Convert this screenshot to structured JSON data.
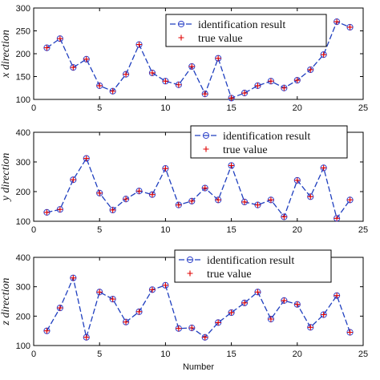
{
  "chart_data": [
    {
      "type": "line",
      "title": "",
      "xlabel": "",
      "ylabel": "x direction",
      "xlim": [
        0,
        25
      ],
      "ylim": [
        100,
        300
      ],
      "xticks": [
        0,
        5,
        10,
        15,
        20,
        25
      ],
      "yticks": [
        100,
        150,
        200,
        250,
        300
      ],
      "x": [
        1,
        2,
        3,
        4,
        5,
        6,
        7,
        8,
        9,
        10,
        11,
        12,
        13,
        14,
        15,
        16,
        17,
        18,
        19,
        20,
        21,
        22,
        23,
        24
      ],
      "series": [
        {
          "name": "identification result",
          "values": [
            213,
            233,
            170,
            188,
            130,
            118,
            155,
            220,
            158,
            140,
            132,
            172,
            112,
            190,
            103,
            114,
            130,
            140,
            125,
            142,
            165,
            198,
            270,
            258
          ]
        },
        {
          "name": "true value",
          "values": [
            213,
            233,
            170,
            188,
            130,
            118,
            155,
            220,
            158,
            140,
            132,
            172,
            112,
            190,
            103,
            114,
            130,
            140,
            125,
            142,
            165,
            198,
            270,
            258
          ]
        }
      ],
      "legend": "top-right"
    },
    {
      "type": "line",
      "title": "",
      "xlabel": "",
      "ylabel": "y direction",
      "xlim": [
        0,
        25
      ],
      "ylim": [
        100,
        400
      ],
      "xticks": [
        0,
        5,
        10,
        15,
        20,
        25
      ],
      "yticks": [
        100,
        200,
        300,
        400
      ],
      "x": [
        1,
        2,
        3,
        4,
        5,
        6,
        7,
        8,
        9,
        10,
        11,
        12,
        13,
        14,
        15,
        16,
        17,
        18,
        19,
        20,
        21,
        22,
        23,
        24
      ],
      "series": [
        {
          "name": "identification result",
          "values": [
            130,
            140,
            240,
            312,
            195,
            138,
            175,
            202,
            190,
            278,
            155,
            168,
            212,
            172,
            288,
            165,
            155,
            172,
            115,
            238,
            183,
            280,
            110,
            172
          ]
        },
        {
          "name": "true value",
          "values": [
            130,
            140,
            240,
            312,
            195,
            138,
            175,
            202,
            190,
            278,
            155,
            168,
            212,
            172,
            288,
            165,
            155,
            172,
            115,
            238,
            183,
            280,
            110,
            172
          ]
        }
      ],
      "legend": "top-right"
    },
    {
      "type": "line",
      "title": "",
      "xlabel": "Number",
      "ylabel": "z direction",
      "xlim": [
        0,
        25
      ],
      "ylim": [
        100,
        400
      ],
      "xticks": [
        0,
        5,
        10,
        15,
        20,
        25
      ],
      "yticks": [
        100,
        200,
        300,
        400
      ],
      "x": [
        1,
        2,
        3,
        4,
        5,
        6,
        7,
        8,
        9,
        10,
        11,
        12,
        13,
        14,
        15,
        16,
        17,
        18,
        19,
        20,
        21,
        22,
        23,
        24
      ],
      "series": [
        {
          "name": "identification result",
          "values": [
            150,
            228,
            330,
            128,
            282,
            258,
            180,
            215,
            290,
            305,
            158,
            160,
            128,
            178,
            212,
            245,
            282,
            190,
            253,
            240,
            162,
            205,
            270,
            145
          ]
        },
        {
          "name": "true value",
          "values": [
            150,
            228,
            330,
            128,
            282,
            258,
            180,
            215,
            290,
            305,
            158,
            160,
            128,
            178,
            212,
            245,
            282,
            190,
            253,
            240,
            162,
            205,
            270,
            145
          ]
        }
      ],
      "legend": "top-right"
    }
  ],
  "colors": {
    "line": "#1f3fbf",
    "marker_circle": "#3344cc",
    "marker_plus": "#e00000",
    "axis": "#000000"
  }
}
